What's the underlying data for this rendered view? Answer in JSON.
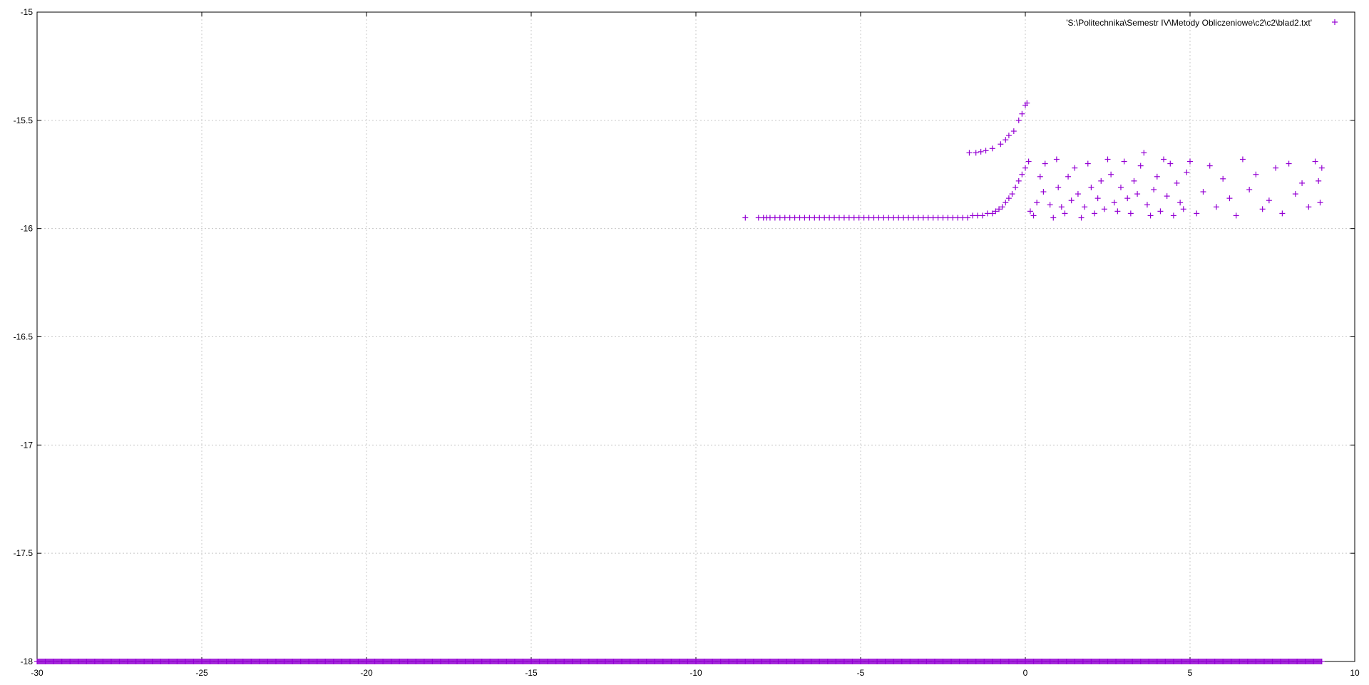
{
  "chart_data": {
    "type": "scatter",
    "title": "",
    "xlabel": "",
    "ylabel": "",
    "xlim": [
      -30,
      10
    ],
    "ylim": [
      -18,
      -15
    ],
    "grid": true,
    "legend_position": "top-right",
    "xticks": [
      -30,
      -25,
      -20,
      -15,
      -10,
      -5,
      0,
      5,
      10
    ],
    "yticks": [
      -15,
      -15.5,
      -16,
      -16.5,
      -17,
      -17.5,
      -18
    ],
    "x_tick_labels": [
      "-30",
      "-25",
      "-20",
      "-15",
      "-10",
      "-5",
      "0",
      "5",
      "10"
    ],
    "y_tick_labels": [
      "-15",
      "-15.5",
      "-16",
      "-16.5",
      "-17",
      "-17.5",
      "-18"
    ],
    "series": [
      {
        "name": "'S:\\Politechnika\\Semestr IV\\Metody Obliczeniowe\\c2\\c2\\blad2.txt'",
        "color": "#9400d3",
        "marker": "plus",
        "points": [
          [
            -8.5,
            -15.95
          ],
          [
            -8.1,
            -15.95
          ],
          [
            -7.95,
            -15.95
          ],
          [
            -7.85,
            -15.95
          ],
          [
            -7.75,
            -15.95
          ],
          [
            -7.6,
            -15.95
          ],
          [
            -7.45,
            -15.95
          ],
          [
            -7.3,
            -15.95
          ],
          [
            -7.15,
            -15.95
          ],
          [
            -7.0,
            -15.95
          ],
          [
            -6.85,
            -15.95
          ],
          [
            -6.7,
            -15.95
          ],
          [
            -6.55,
            -15.95
          ],
          [
            -6.4,
            -15.95
          ],
          [
            -6.25,
            -15.95
          ],
          [
            -6.1,
            -15.95
          ],
          [
            -5.95,
            -15.95
          ],
          [
            -5.8,
            -15.95
          ],
          [
            -5.65,
            -15.95
          ],
          [
            -5.5,
            -15.95
          ],
          [
            -5.35,
            -15.95
          ],
          [
            -5.2,
            -15.95
          ],
          [
            -5.05,
            -15.95
          ],
          [
            -4.9,
            -15.95
          ],
          [
            -4.75,
            -15.95
          ],
          [
            -4.6,
            -15.95
          ],
          [
            -4.45,
            -15.95
          ],
          [
            -4.3,
            -15.95
          ],
          [
            -4.15,
            -15.95
          ],
          [
            -4.0,
            -15.95
          ],
          [
            -3.85,
            -15.95
          ],
          [
            -3.7,
            -15.95
          ],
          [
            -3.55,
            -15.95
          ],
          [
            -3.4,
            -15.95
          ],
          [
            -3.25,
            -15.95
          ],
          [
            -3.1,
            -15.95
          ],
          [
            -2.95,
            -15.95
          ],
          [
            -2.8,
            -15.95
          ],
          [
            -2.65,
            -15.95
          ],
          [
            -2.5,
            -15.95
          ],
          [
            -2.35,
            -15.95
          ],
          [
            -2.2,
            -15.95
          ],
          [
            -2.05,
            -15.95
          ],
          [
            -1.9,
            -15.95
          ],
          [
            -1.75,
            -15.95
          ],
          [
            -1.6,
            -15.94
          ],
          [
            -1.45,
            -15.94
          ],
          [
            -1.3,
            -15.94
          ],
          [
            -1.15,
            -15.93
          ],
          [
            -1.0,
            -15.93
          ],
          [
            -0.9,
            -15.92
          ],
          [
            -0.8,
            -15.91
          ],
          [
            -0.7,
            -15.9
          ],
          [
            -0.6,
            -15.88
          ],
          [
            -0.5,
            -15.86
          ],
          [
            -0.4,
            -15.84
          ],
          [
            -0.3,
            -15.81
          ],
          [
            -0.2,
            -15.78
          ],
          [
            -0.1,
            -15.75
          ],
          [
            0.0,
            -15.72
          ],
          [
            -1.7,
            -15.65
          ],
          [
            -1.5,
            -15.65
          ],
          [
            -1.35,
            -15.645
          ],
          [
            -1.2,
            -15.64
          ],
          [
            -1.0,
            -15.63
          ],
          [
            -0.75,
            -15.61
          ],
          [
            -0.6,
            -15.59
          ],
          [
            -0.5,
            -15.57
          ],
          [
            -0.35,
            -15.55
          ],
          [
            -0.2,
            -15.5
          ],
          [
            -0.1,
            -15.47
          ],
          [
            0.0,
            -15.43
          ],
          [
            0.05,
            -15.42
          ],
          [
            0.1,
            -15.69
          ],
          [
            0.15,
            -15.92
          ],
          [
            0.25,
            -15.94
          ],
          [
            0.35,
            -15.88
          ],
          [
            0.45,
            -15.76
          ],
          [
            0.55,
            -15.83
          ],
          [
            0.6,
            -15.7
          ],
          [
            0.75,
            -15.89
          ],
          [
            0.85,
            -15.95
          ],
          [
            0.95,
            -15.68
          ],
          [
            1.0,
            -15.81
          ],
          [
            1.1,
            -15.9
          ],
          [
            1.2,
            -15.93
          ],
          [
            1.3,
            -15.76
          ],
          [
            1.4,
            -15.87
          ],
          [
            1.5,
            -15.72
          ],
          [
            1.6,
            -15.84
          ],
          [
            1.7,
            -15.95
          ],
          [
            1.8,
            -15.9
          ],
          [
            1.9,
            -15.7
          ],
          [
            2.0,
            -15.81
          ],
          [
            2.1,
            -15.93
          ],
          [
            2.2,
            -15.86
          ],
          [
            2.3,
            -15.78
          ],
          [
            2.4,
            -15.91
          ],
          [
            2.5,
            -15.68
          ],
          [
            2.6,
            -15.75
          ],
          [
            2.7,
            -15.88
          ],
          [
            2.8,
            -15.92
          ],
          [
            2.9,
            -15.81
          ],
          [
            3.0,
            -15.69
          ],
          [
            3.1,
            -15.86
          ],
          [
            3.2,
            -15.93
          ],
          [
            3.3,
            -15.78
          ],
          [
            3.4,
            -15.84
          ],
          [
            3.5,
            -15.71
          ],
          [
            3.6,
            -15.65
          ],
          [
            3.7,
            -15.89
          ],
          [
            3.8,
            -15.94
          ],
          [
            3.9,
            -15.82
          ],
          [
            4.0,
            -15.76
          ],
          [
            4.1,
            -15.92
          ],
          [
            4.2,
            -15.68
          ],
          [
            4.3,
            -15.85
          ],
          [
            4.4,
            -15.7
          ],
          [
            4.5,
            -15.94
          ],
          [
            4.6,
            -15.79
          ],
          [
            4.7,
            -15.88
          ],
          [
            4.8,
            -15.91
          ],
          [
            4.9,
            -15.74
          ],
          [
            5.0,
            -15.69
          ],
          [
            5.2,
            -15.93
          ],
          [
            5.4,
            -15.83
          ],
          [
            5.6,
            -15.71
          ],
          [
            5.8,
            -15.9
          ],
          [
            6.0,
            -15.77
          ],
          [
            6.2,
            -15.86
          ],
          [
            6.4,
            -15.94
          ],
          [
            6.6,
            -15.68
          ],
          [
            6.8,
            -15.82
          ],
          [
            7.0,
            -15.75
          ],
          [
            7.2,
            -15.91
          ],
          [
            7.4,
            -15.87
          ],
          [
            7.6,
            -15.72
          ],
          [
            7.8,
            -15.93
          ],
          [
            8.0,
            -15.7
          ],
          [
            8.2,
            -15.84
          ],
          [
            8.4,
            -15.79
          ],
          [
            8.6,
            -15.9
          ],
          [
            8.8,
            -15.69
          ],
          [
            8.9,
            -15.78
          ],
          [
            8.95,
            -15.88
          ],
          [
            9.0,
            -15.72
          ]
        ],
        "bottom_band": {
          "x_from": -30,
          "x_to": 9,
          "y": -18
        }
      }
    ]
  }
}
